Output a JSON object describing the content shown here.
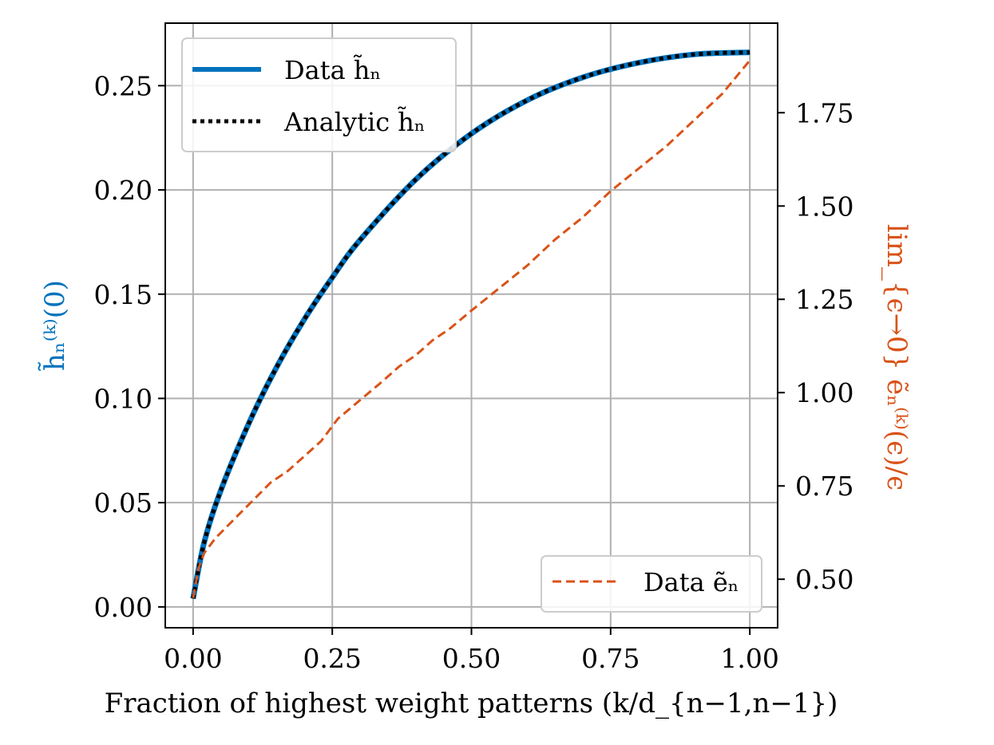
{
  "chart_data": {
    "type": "line",
    "title": "",
    "xlabel": "Fraction of highest weight patterns (k/d_{n−1,n−1})",
    "ylabel_left": "h̃ₙ⁽ᵏ⁾(0)",
    "ylabel_right": "lim_{ϵ→0} ẽₙ⁽ᵏ⁾(ϵ)/ϵ",
    "xlim": [
      -0.05,
      1.05
    ],
    "ylim_left": [
      -0.01,
      0.28
    ],
    "ylim_right": [
      0.37,
      1.99
    ],
    "grid": true,
    "x_ticks": [
      0.0,
      0.25,
      0.5,
      0.75,
      1.0
    ],
    "x_tick_labels": [
      "0.00",
      "0.25",
      "0.50",
      "0.75",
      "1.00"
    ],
    "y_left_ticks": [
      0.0,
      0.05,
      0.1,
      0.15,
      0.2,
      0.25
    ],
    "y_left_tick_labels": [
      "0.00",
      "0.05",
      "0.10",
      "0.15",
      "0.20",
      "0.25"
    ],
    "y_right_ticks": [
      0.5,
      0.75,
      1.0,
      1.25,
      1.5,
      1.75
    ],
    "y_right_tick_labels": [
      "0.50",
      "0.75",
      "1.00",
      "1.25",
      "1.50",
      "1.75"
    ],
    "colors": {
      "data_h": "#0072bd",
      "analytic_h": "#000000",
      "data_e": "#d95319",
      "grid": "#b0b0b0"
    },
    "series": [
      {
        "name": "Data h̃ₙ",
        "axis": "left",
        "style": "solid",
        "x": [
          0,
          0.02,
          0.05,
          0.1,
          0.15,
          0.2,
          0.25,
          0.3,
          0.4,
          0.5,
          0.6,
          0.7,
          0.8,
          0.9,
          1.0
        ],
        "y": [
          0.004,
          0.031,
          0.056,
          0.088,
          0.115,
          0.138,
          0.158,
          0.176,
          0.205,
          0.227,
          0.243,
          0.254,
          0.261,
          0.265,
          0.266
        ]
      },
      {
        "name": "Analytic h̃ₙ",
        "axis": "left",
        "style": "dotted",
        "x": [
          0,
          0.02,
          0.05,
          0.1,
          0.15,
          0.2,
          0.25,
          0.3,
          0.4,
          0.5,
          0.6,
          0.7,
          0.8,
          0.9,
          1.0
        ],
        "y": [
          0.004,
          0.031,
          0.056,
          0.088,
          0.115,
          0.138,
          0.158,
          0.176,
          0.205,
          0.227,
          0.243,
          0.254,
          0.261,
          0.265,
          0.266
        ]
      },
      {
        "name": "Data ẽₙ",
        "axis": "right",
        "style": "dashed",
        "x": [
          0,
          0.01,
          0.02,
          0.04,
          0.06,
          0.08,
          0.1,
          0.12,
          0.14,
          0.17,
          0.2,
          0.23,
          0.26,
          0.3,
          0.34,
          0.37,
          0.4,
          0.43,
          0.46,
          0.5,
          0.55,
          0.6,
          0.65,
          0.7,
          0.75,
          0.8,
          0.85,
          0.9,
          0.95,
          1.0
        ],
        "y": [
          0.45,
          0.53,
          0.57,
          0.61,
          0.64,
          0.67,
          0.7,
          0.73,
          0.76,
          0.79,
          0.83,
          0.87,
          0.93,
          0.98,
          1.03,
          1.07,
          1.1,
          1.14,
          1.17,
          1.22,
          1.28,
          1.34,
          1.41,
          1.47,
          1.54,
          1.6,
          1.66,
          1.73,
          1.8,
          1.89
        ]
      }
    ],
    "legends": [
      {
        "placement": "top-left",
        "entries": [
          "Data h̃ₙ",
          "Analytic h̃ₙ"
        ]
      },
      {
        "placement": "bottom-right",
        "entries": [
          "Data ẽₙ"
        ]
      }
    ]
  }
}
